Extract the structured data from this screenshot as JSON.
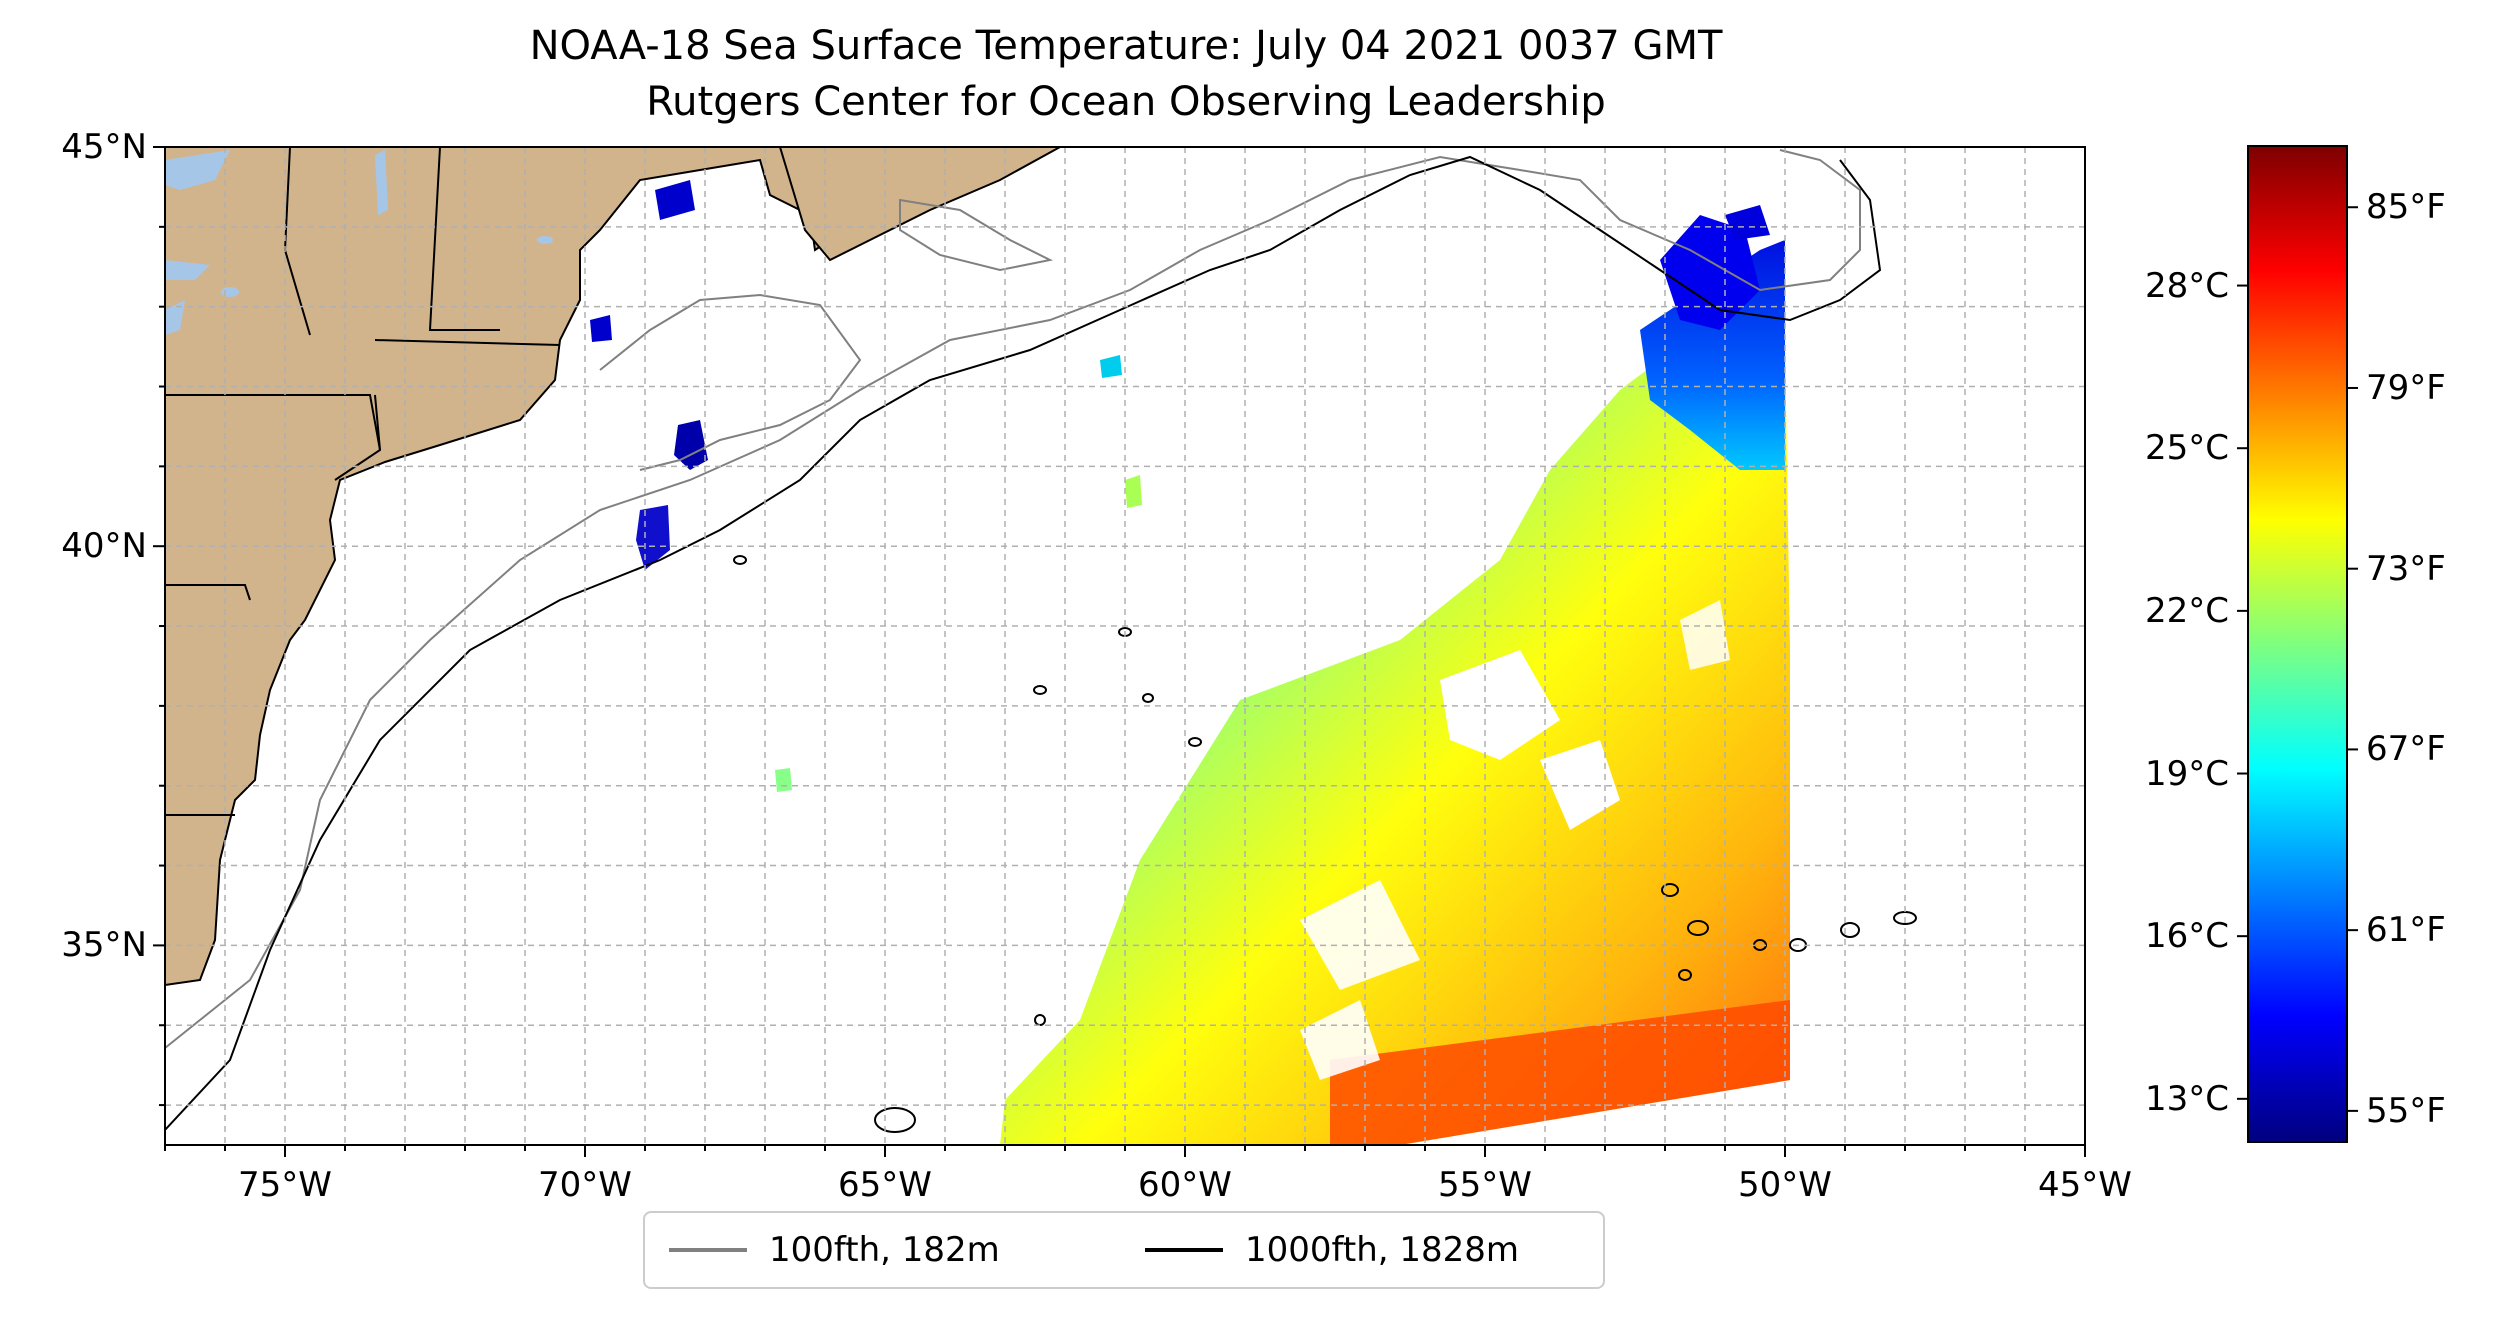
{
  "title": "NOAA-18 Sea Surface Temperature: July 04 2021 0037 GMT",
  "subtitle": "Rutgers Center for Ocean Observing Leadership",
  "map": {
    "lon_range": [
      -77,
      -45
    ],
    "lat_range": [
      32.5,
      45
    ],
    "lon_ticks": [
      {
        "value": -75,
        "label": "75°W"
      },
      {
        "value": -70,
        "label": "70°W"
      },
      {
        "value": -65,
        "label": "65°W"
      },
      {
        "value": -60,
        "label": "60°W"
      },
      {
        "value": -55,
        "label": "55°W"
      },
      {
        "value": -50,
        "label": "50°W"
      },
      {
        "value": -45,
        "label": "45°W"
      }
    ],
    "lat_ticks": [
      {
        "value": 45,
        "label": "45°N"
      },
      {
        "value": 40,
        "label": "40°N"
      },
      {
        "value": 35,
        "label": "35°N"
      }
    ],
    "grid": true,
    "land_color": "#d2b48c",
    "ocean_color": "#ffffff",
    "lake_color": "#a6c6e8"
  },
  "legend": {
    "placement": "bottom-center",
    "items": [
      {
        "label": "100fth, 182m",
        "color": "#808080"
      },
      {
        "label": "1000fth, 1828m",
        "color": "#000000"
      }
    ]
  },
  "colorbar": {
    "colormap": "jet",
    "range_f": [
      54,
      87
    ],
    "celsius_ticks": [
      "28°C",
      "25°C",
      "22°C",
      "19°C",
      "16°C",
      "13°C"
    ],
    "celsius_values": [
      28,
      25,
      22,
      19,
      16,
      13
    ],
    "fahrenheit_ticks": [
      "85°F",
      "79°F",
      "73°F",
      "67°F",
      "61°F",
      "55°F"
    ],
    "fahrenheit_values": [
      85,
      79,
      73,
      67,
      61,
      55
    ]
  }
}
